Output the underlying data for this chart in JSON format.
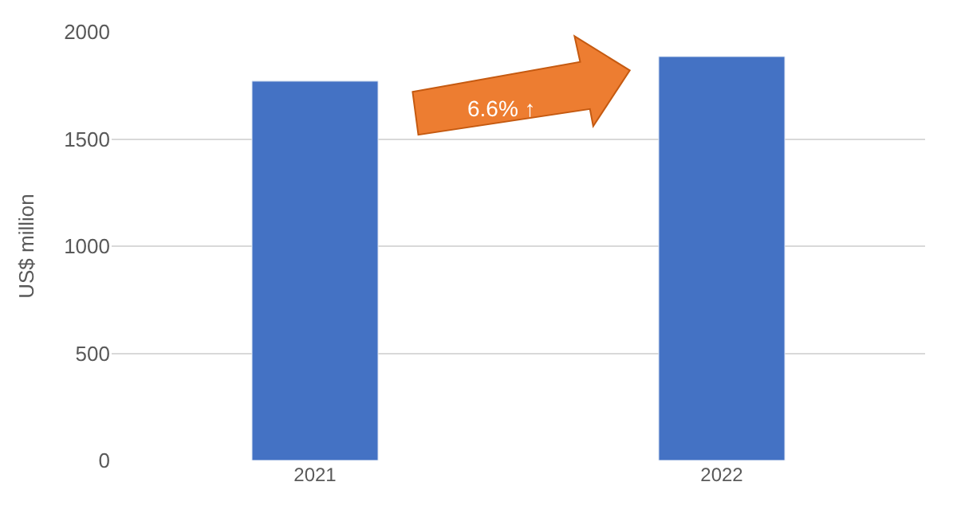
{
  "chart_data": {
    "type": "bar",
    "ylabel": "US$ million",
    "categories": [
      "2021",
      "2022"
    ],
    "series": [
      {
        "color": "#4472c4",
        "values": [
          1770,
          1885
        ]
      }
    ],
    "ylim": [
      0,
      2000
    ],
    "yticks": [
      0,
      500,
      1000,
      1500,
      2000
    ],
    "grid": "y",
    "annotations": [
      "6.6% ↑"
    ]
  }
}
